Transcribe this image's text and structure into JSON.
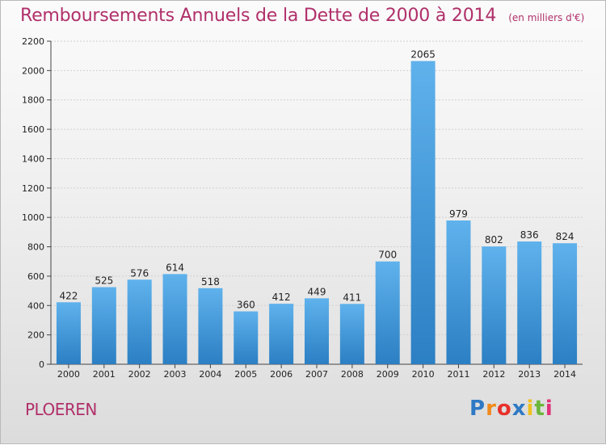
{
  "header": {
    "title": "Remboursements Annuels de la Dette de 2000 à 2014",
    "subtitle": "(en milliers d'€)"
  },
  "footer": {
    "city": "PLOEREN",
    "logo_letters": [
      "P",
      "r",
      "o",
      "x",
      "i",
      "t",
      "i"
    ],
    "logo_colors": [
      "#2f79c4",
      "#f08a1c",
      "#e8312b",
      "#2f79c4",
      "#f0c020",
      "#6cb63a",
      "#e0337a"
    ]
  },
  "colors": {
    "title": "#b0306a",
    "bar_light": "#5fb2ec",
    "bar_dark": "#2b7fc3",
    "grid": "#cfcfcf"
  },
  "chart_data": {
    "type": "bar",
    "title": "Remboursements Annuels de la Dette de 2000 à 2014",
    "subtitle": "(en milliers d'€)",
    "xlabel": "",
    "ylabel": "",
    "categories": [
      "2000",
      "2001",
      "2002",
      "2003",
      "2004",
      "2005",
      "2006",
      "2007",
      "2008",
      "2009",
      "2010",
      "2011",
      "2012",
      "2013",
      "2014"
    ],
    "values": [
      422,
      525,
      576,
      614,
      518,
      360,
      412,
      449,
      411,
      700,
      2065,
      979,
      802,
      836,
      824
    ],
    "ylim": [
      0,
      2200
    ],
    "yticks": [
      0,
      200,
      400,
      600,
      800,
      1000,
      1200,
      1400,
      1600,
      1800,
      2000,
      2200
    ],
    "grid": true,
    "data_labels": true
  }
}
